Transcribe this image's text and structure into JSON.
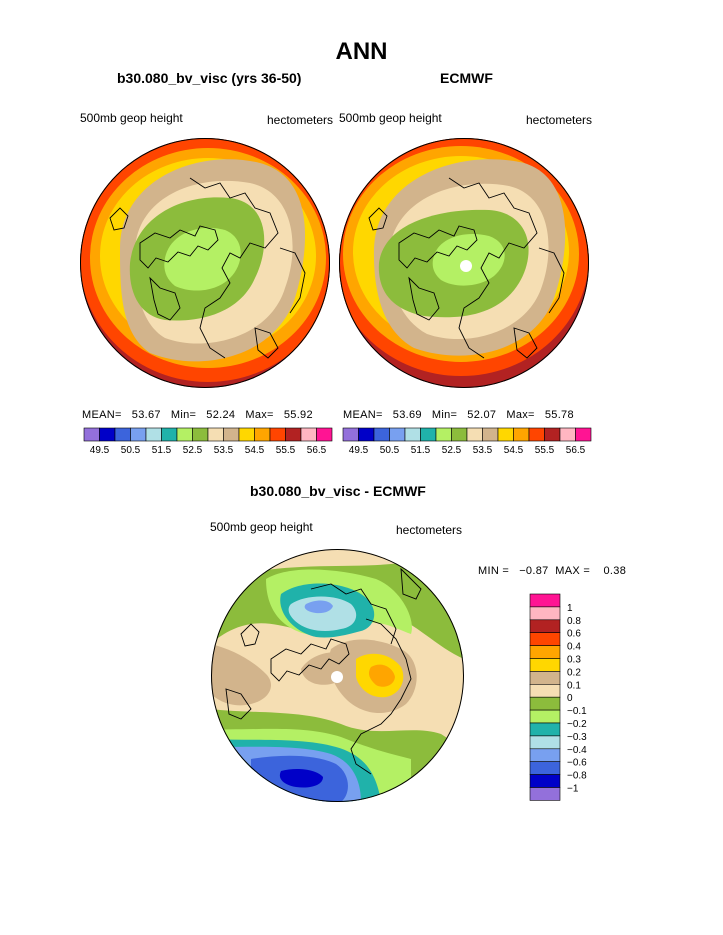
{
  "main_title": "ANN",
  "panels": [
    {
      "title": "b30.080_bv_visc (yrs 36-50)",
      "left_label": "500mb geop height",
      "right_label": "hectometers",
      "stats": "MEAN=   53.67   Min=   52.24   Max=   55.92"
    },
    {
      "title": "ECMWF",
      "left_label": "500mb geop height",
      "right_label": "hectometers",
      "stats": "MEAN=   53.69   Min=   52.07   Max=   55.78"
    }
  ],
  "diff": {
    "title": "b30.080_bv_visc - ECMWF",
    "left_label": "500mb geop height",
    "right_label": "hectometers",
    "minmax": "MIN =   −0.87  MAX =    0.38"
  },
  "colorbar_horizontal": {
    "colors": [
      "#9370db",
      "#0000c8",
      "#3c64dc",
      "#78a0f0",
      "#b0e0e6",
      "#20b2aa",
      "#b4f064",
      "#8cbc3c",
      "#f5deb3",
      "#d2b48c",
      "#ffd700",
      "#ffa500",
      "#ff4500",
      "#b22222",
      "#ffb6c1",
      "#ff1493"
    ],
    "labels": [
      "49.5",
      "50.5",
      "51.5",
      "52.5",
      "53.5",
      "54.5",
      "55.5",
      "56.5"
    ]
  },
  "colorbar_vertical": {
    "colors": [
      "#ff1493",
      "#ffb6c1",
      "#b22222",
      "#ff4500",
      "#ffa500",
      "#ffd700",
      "#d2b48c",
      "#f5deb3",
      "#8cbc3c",
      "#b4f064",
      "#20b2aa",
      "#b0e0e6",
      "#78a0f0",
      "#3c64dc",
      "#0000c8",
      "#9370db"
    ],
    "labels": [
      "1",
      "0.8",
      "0.6",
      "0.4",
      "0.3",
      "0.2",
      "0.1",
      "0",
      "−0.1",
      "−0.2",
      "−0.3",
      "−0.4",
      "−0.6",
      "−0.8",
      "−1"
    ]
  }
}
